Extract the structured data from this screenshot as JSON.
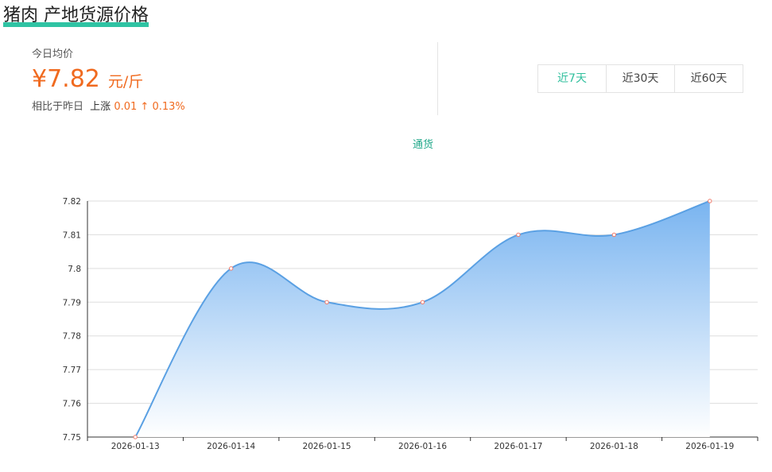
{
  "header": {
    "title": "猪肉 产地货源价格"
  },
  "summary": {
    "today_label": "今日均价",
    "price": "¥7.82",
    "unit": "元/斤",
    "compare_label": "相比于昨日",
    "direction": "上涨",
    "delta": "0.01",
    "arrow": "↑",
    "percent": "0.13%"
  },
  "range_tabs": [
    {
      "label": "近7天",
      "active": true
    },
    {
      "label": "近30天",
      "active": false
    },
    {
      "label": "近60天",
      "active": false
    }
  ],
  "chart_data": {
    "type": "area",
    "series": [
      {
        "name": "通货",
        "values": [
          7.75,
          7.8,
          7.79,
          7.79,
          7.81,
          7.81,
          7.82
        ]
      }
    ],
    "categories": [
      "2026-01-13",
      "2026-01-14",
      "2026-01-15",
      "2026-01-16",
      "2026-01-17",
      "2026-01-18",
      "2026-01-19"
    ],
    "y_ticks": [
      "7.75",
      "7.76",
      "7.77",
      "7.78",
      "7.79",
      "7.8",
      "7.81",
      "7.82"
    ],
    "ylim": [
      7.75,
      7.82
    ],
    "grid": true,
    "smooth": true,
    "legend": "top-center",
    "colors": {
      "line": "#5aa0e3",
      "fill_top": "#79b4f0",
      "fill_bottom": "#ffffff",
      "point": "#f07a6a"
    }
  }
}
